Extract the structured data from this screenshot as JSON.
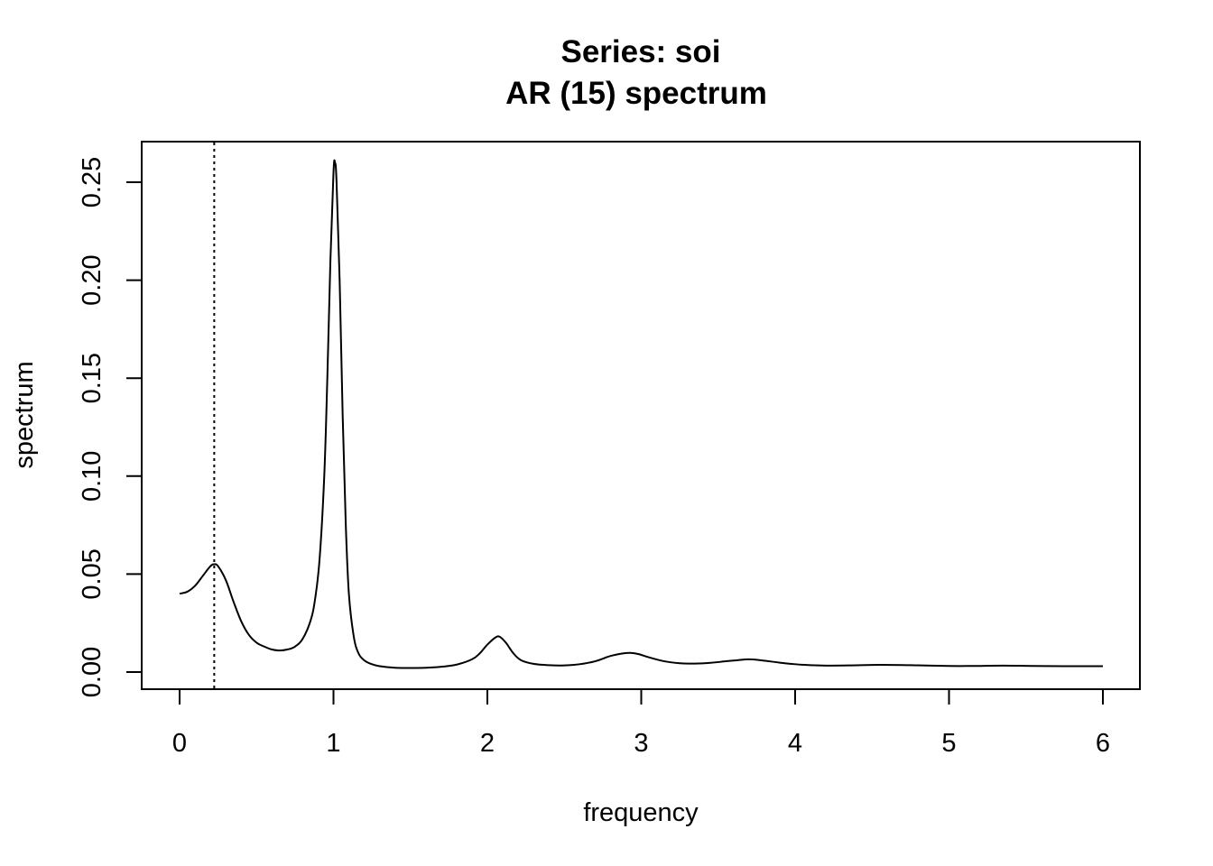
{
  "chart_data": {
    "type": "line",
    "title": "Series: soi",
    "subtitle": "AR (15) spectrum",
    "xlabel": "frequency",
    "ylabel": "spectrum",
    "xlim": [
      0,
      6
    ],
    "ylim": [
      0,
      0.26
    ],
    "x_ticks": [
      "0",
      "1",
      "2",
      "3",
      "4",
      "5",
      "6"
    ],
    "y_ticks": [
      "0.00",
      "0.05",
      "0.10",
      "0.15",
      "0.20",
      "0.25"
    ],
    "grid": false,
    "legend": "none",
    "vertical_reference_line": {
      "x": 0.225,
      "style": "dotted"
    },
    "series": [
      {
        "x": [
          0,
          0.05,
          0.1,
          0.15,
          0.2,
          0.225,
          0.25,
          0.3,
          0.35,
          0.4,
          0.45,
          0.5,
          0.55,
          0.6,
          0.65,
          0.7,
          0.75,
          0.8,
          0.85,
          0.88,
          0.91,
          0.94,
          0.96,
          0.98,
          1.0,
          1.01,
          1.02,
          1.04,
          1.06,
          1.08,
          1.1,
          1.13,
          1.16,
          1.2,
          1.25,
          1.3,
          1.4,
          1.5,
          1.6,
          1.7,
          1.8,
          1.9,
          1.95,
          2.0,
          2.05,
          2.08,
          2.12,
          2.17,
          2.22,
          2.3,
          2.4,
          2.5,
          2.6,
          2.7,
          2.8,
          2.88,
          2.93,
          2.98,
          3.05,
          3.15,
          3.25,
          3.35,
          3.45,
          3.55,
          3.62,
          3.7,
          3.78,
          3.9,
          4.0,
          4.1,
          4.2,
          4.35,
          4.55,
          4.75,
          5.0,
          5.15,
          5.35,
          5.55,
          5.75,
          6.0
        ],
        "y": [
          0.04,
          0.041,
          0.044,
          0.049,
          0.054,
          0.055,
          0.054,
          0.047,
          0.036,
          0.026,
          0.019,
          0.015,
          0.013,
          0.0115,
          0.011,
          0.0115,
          0.013,
          0.017,
          0.026,
          0.037,
          0.058,
          0.1,
          0.15,
          0.21,
          0.255,
          0.26,
          0.25,
          0.2,
          0.13,
          0.075,
          0.04,
          0.019,
          0.01,
          0.006,
          0.004,
          0.003,
          0.0022,
          0.0021,
          0.0022,
          0.0027,
          0.0038,
          0.0065,
          0.0095,
          0.014,
          0.0175,
          0.018,
          0.015,
          0.0095,
          0.006,
          0.0042,
          0.0035,
          0.0034,
          0.004,
          0.0055,
          0.0082,
          0.0095,
          0.0098,
          0.0092,
          0.0075,
          0.0055,
          0.0045,
          0.0043,
          0.0047,
          0.0055,
          0.006,
          0.0065,
          0.006,
          0.0048,
          0.004,
          0.0035,
          0.0033,
          0.0034,
          0.0037,
          0.0035,
          0.0031,
          0.0031,
          0.0033,
          0.0031,
          0.003,
          0.003
        ]
      }
    ]
  }
}
